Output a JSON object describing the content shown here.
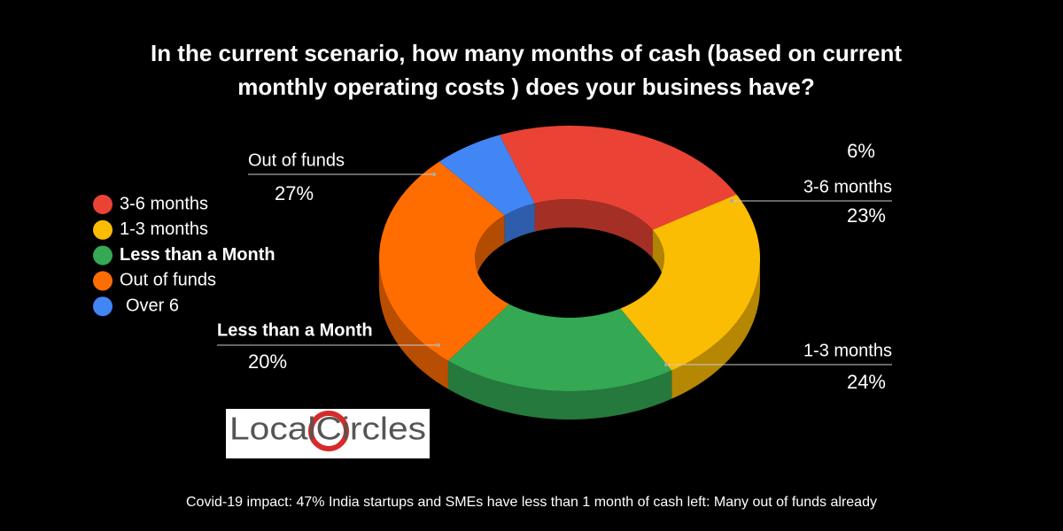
{
  "chart_data": {
    "type": "donut3d",
    "title": [
      "In the current scenario, how many months of cash (based on current",
      "monthly operating costs ) does your business have?"
    ],
    "categories": [
      "3-6 months",
      "1-3 months",
      "Less than a Month",
      "Out of funds",
      "Over 6"
    ],
    "values": [
      23,
      24,
      20,
      27,
      6
    ],
    "value_labels": [
      "23%",
      "24%",
      "20%",
      "27%",
      "6%"
    ],
    "colors": [
      "#ea4335",
      "#fbbc04",
      "#34a853",
      "#ff6d01",
      "#4285f4"
    ],
    "caption": "Covid-19 impact: 47% India startups and SMEs have less than 1 month of cash left: Many out of funds already",
    "logo": "LocalCircles"
  }
}
